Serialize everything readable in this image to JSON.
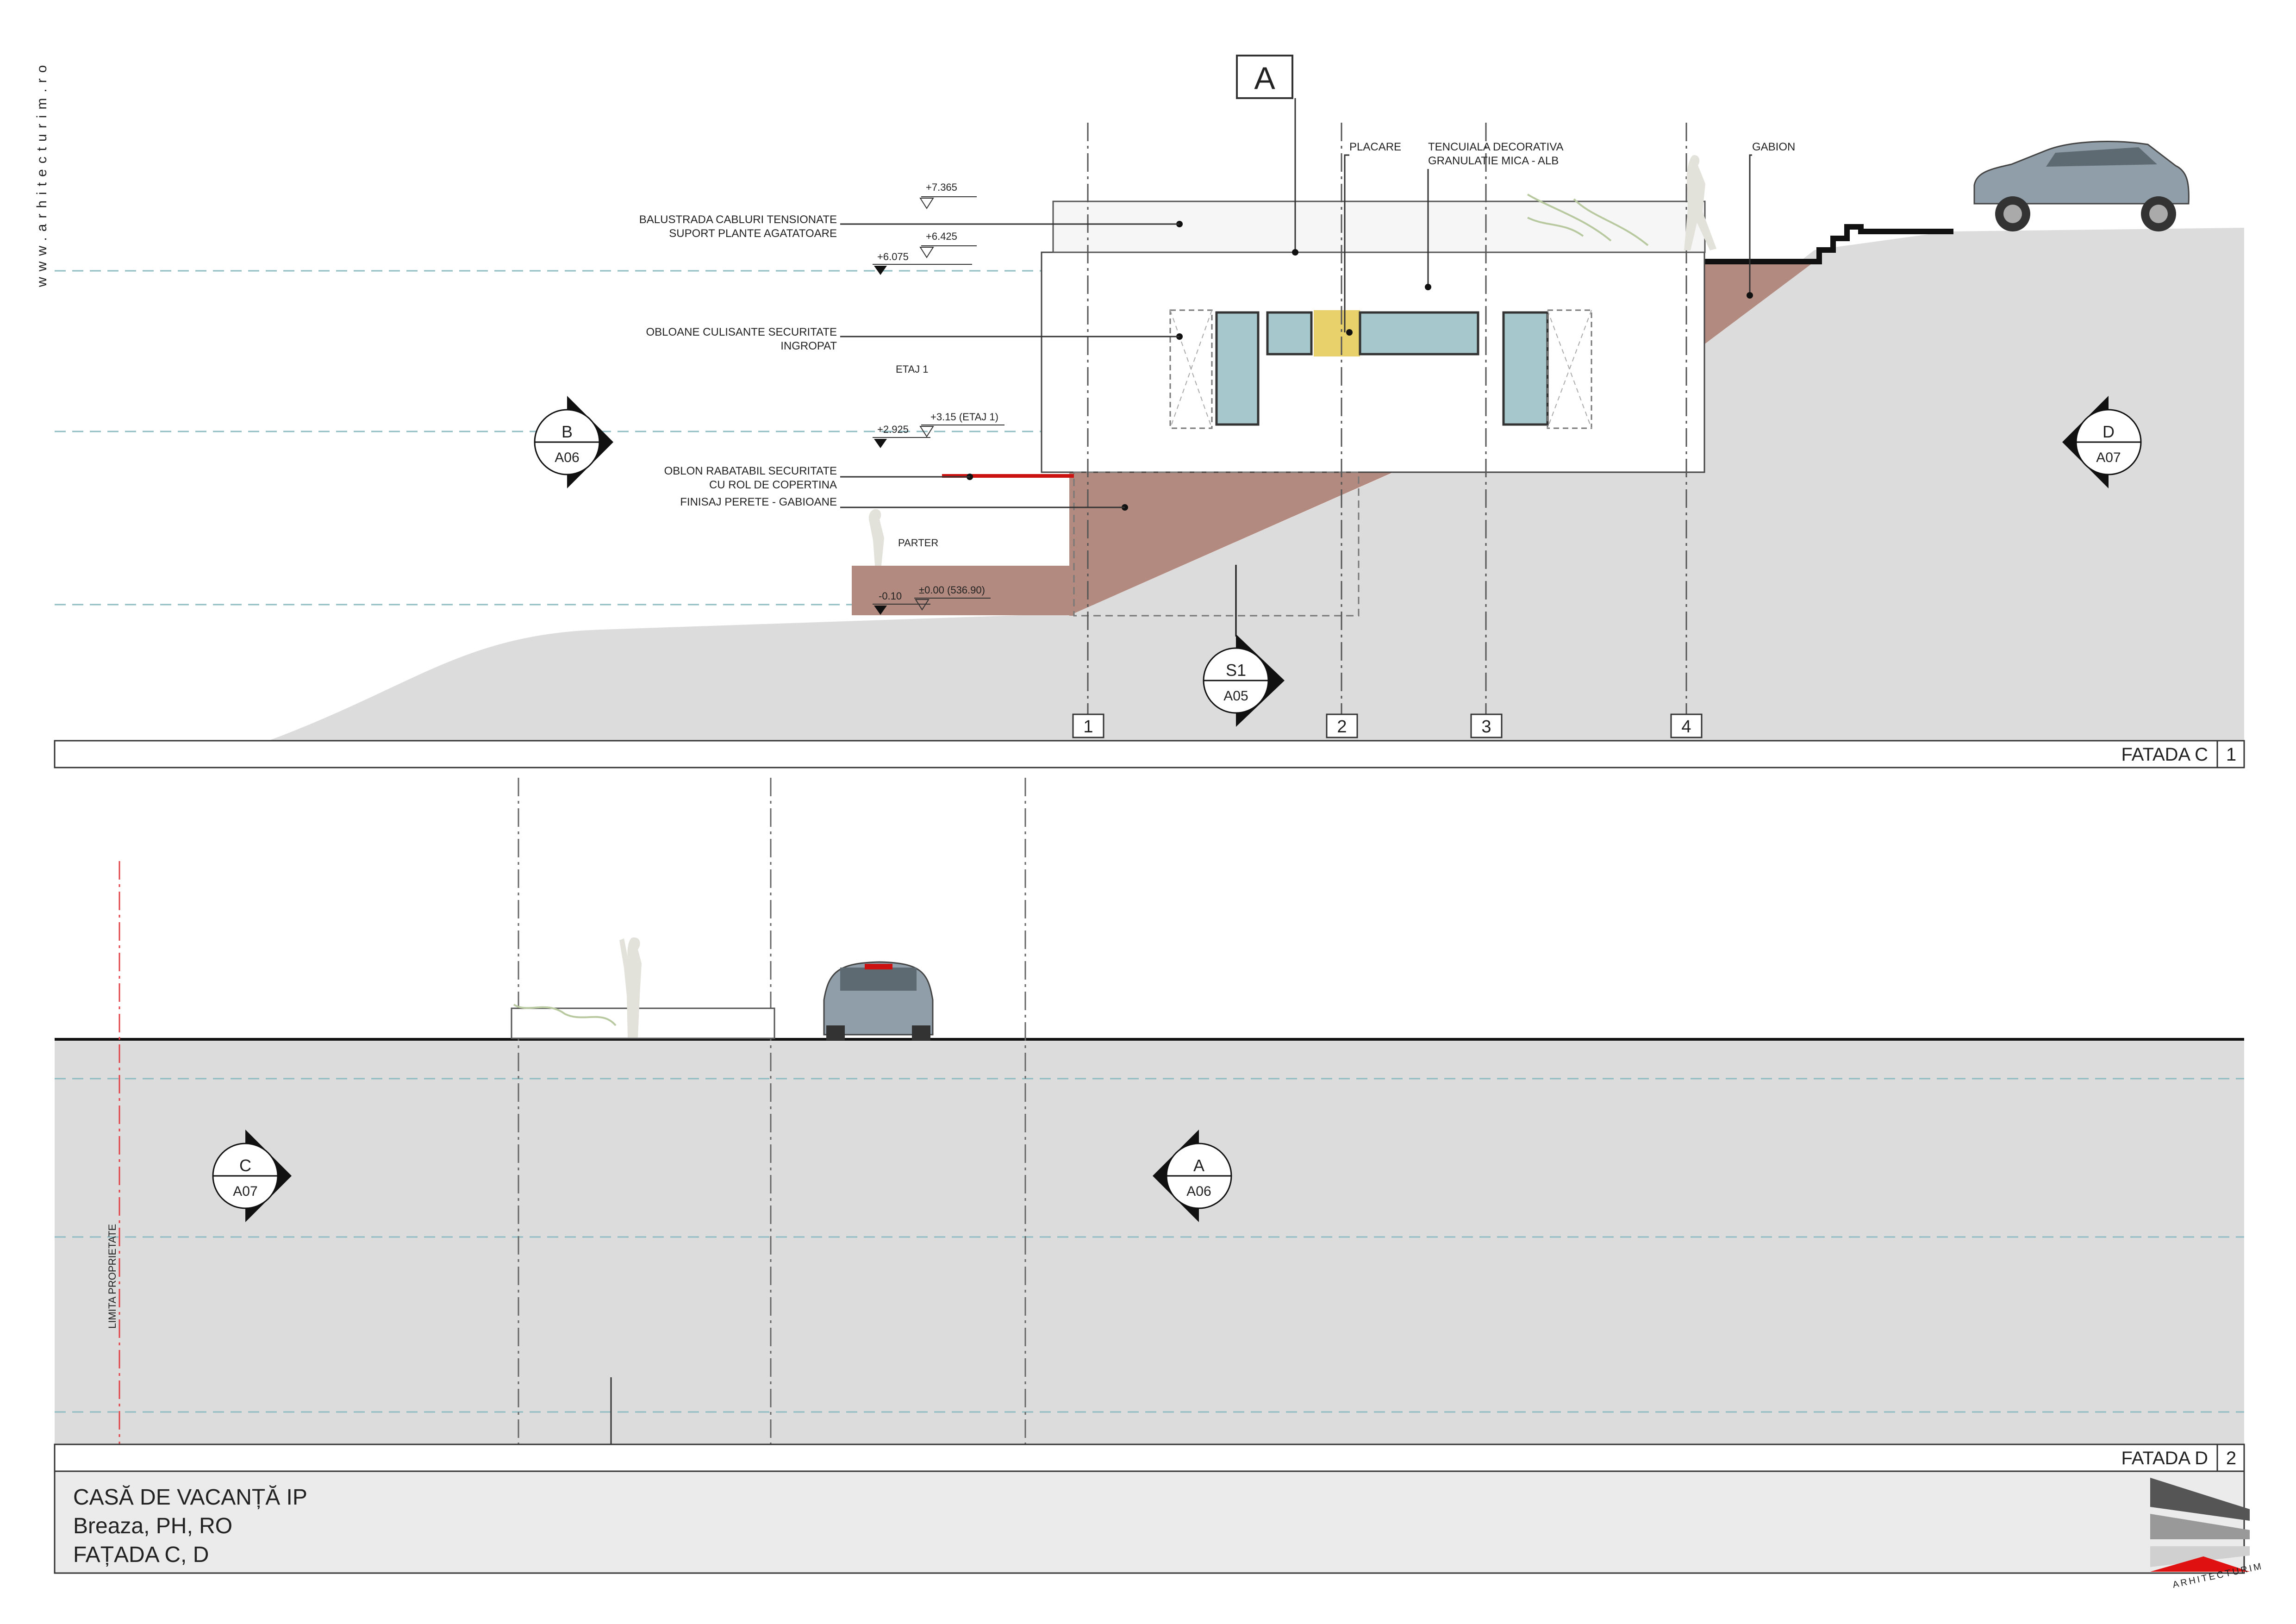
{
  "website": "www.arhitecturim.ro",
  "facade_c": {
    "title": "FATADA C",
    "number": "1",
    "grid_letter": "A",
    "axes": [
      "1",
      "2",
      "3",
      "4"
    ],
    "callouts": {
      "placare": "PLACARE",
      "tencuiala_1": "TENCUIALA DECORATIVA",
      "tencuiala_2": "GRANULATIE MICA - ALB",
      "gabion": "GABION",
      "balustrada_1": "BALUSTRADA CABLURI TENSIONATE",
      "balustrada_2": "SUPORT PLANTE AGATATOARE",
      "obloane_1": "OBLOANE CULISANTE SECURITATE",
      "obloane_2": "INGROPAT",
      "oblon_1": "OBLON RABATABIL SECURITATE",
      "oblon_2": "CU ROL DE COPERTINA",
      "finisaj": "FINISAJ PERETE - GABIOANE"
    },
    "levels": {
      "l_7365": "+7.365",
      "l_6425": "+6.425",
      "l_6075": "+6.075",
      "etaj1_label": "ETAJ 1",
      "l_315": "+3.15 (ETAJ 1)",
      "l_2925": "+2.925",
      "parter_label": "PARTER",
      "l_010": "-0.10",
      "l_000": "±0.00 (536.90)"
    },
    "section_marks": [
      {
        "letter": "B",
        "sheet": "A06"
      },
      {
        "letter": "D",
        "sheet": "A07"
      },
      {
        "letter": "S1",
        "sheet": "A05"
      }
    ]
  },
  "facade_d": {
    "title": "FATADA D",
    "number": "2",
    "property_limit": "LIMITA PROPRIETATE",
    "section_marks": [
      {
        "letter": "C",
        "sheet": "A07"
      },
      {
        "letter": "A",
        "sheet": "A06"
      }
    ]
  },
  "title_block": {
    "project": "CASĂ DE VACANȚĂ  IP",
    "location": "Breaza, PH, RO",
    "sheet_title": "FAȚADA C, D",
    "logo_text": "ARHITECTURIM"
  },
  "colors": {
    "ground": "#dcdcdc",
    "gabion": "#b38a80",
    "glass": "#a6c8cc",
    "cladding": "#e8d16b",
    "accent_red": "#cc1111",
    "datum": "#8fbcc2"
  }
}
